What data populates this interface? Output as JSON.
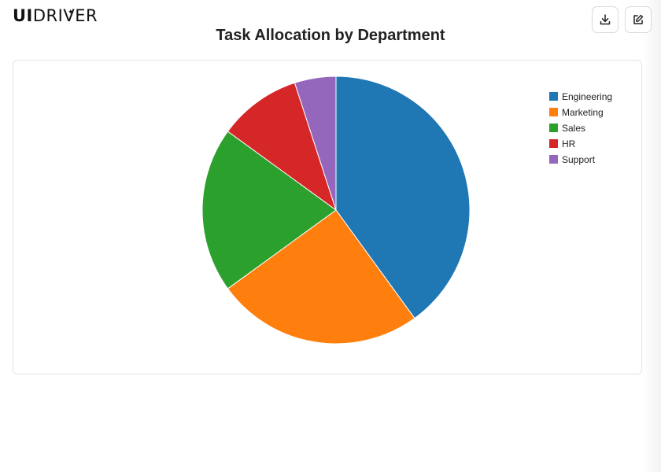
{
  "header": {
    "logo_ui": "UI",
    "logo_driver": "DRIVER",
    "download_icon": "download-icon",
    "edit_icon": "edit-icon"
  },
  "chart_data": {
    "type": "pie",
    "title": "Task Allocation by Department",
    "categories": [
      "Engineering",
      "Marketing",
      "Sales",
      "HR",
      "Support"
    ],
    "values": [
      40,
      25,
      20,
      10,
      5
    ],
    "colors": [
      "#1f77b4",
      "#ff7f0e",
      "#2ca02c",
      "#d62728",
      "#9467bd"
    ],
    "legend_position": "top-right",
    "start_angle": "12 o'clock, clockwise"
  }
}
